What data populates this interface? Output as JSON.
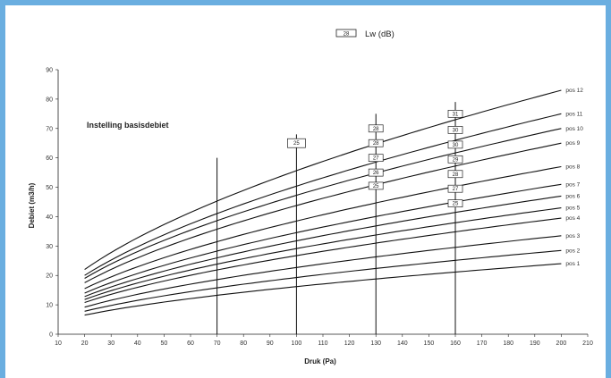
{
  "chart_data": {
    "type": "line",
    "title": "",
    "xlabel": "Druk (Pa)",
    "ylabel": "Debiet (m3/h)",
    "xlim": [
      10,
      210
    ],
    "ylim": [
      0,
      90
    ],
    "x_ticks": [
      10,
      20,
      30,
      40,
      50,
      60,
      70,
      80,
      90,
      100,
      110,
      120,
      130,
      140,
      150,
      160,
      170,
      180,
      190,
      200,
      210
    ],
    "y_ticks": [
      0,
      10,
      20,
      30,
      40,
      50,
      60,
      70,
      80,
      90
    ],
    "x_tick_labels": [
      "10",
      "20",
      "30",
      "40",
      "50",
      "60",
      "70",
      "80",
      "90",
      "100",
      "110",
      "120",
      "130",
      "140",
      "150",
      "160",
      "170",
      "180",
      "190",
      "200",
      "210"
    ],
    "y_tick_labels": [
      "0",
      "10",
      "20",
      "30",
      "40",
      "50",
      "60",
      "70",
      "80",
      "90"
    ],
    "grid": false,
    "legend": {
      "box_text": "28",
      "text": "Lw (dB)",
      "placement": "top-center"
    },
    "annotation": "Instelling basisdebiet",
    "vertical_lines": [
      70,
      100,
      130,
      160
    ],
    "series": [
      {
        "name": "pos 1",
        "endpoints": [
          [
            20,
            6.5
          ],
          [
            200,
            24
          ]
        ]
      },
      {
        "name": "pos 2",
        "endpoints": [
          [
            20,
            7.8
          ],
          [
            200,
            28.5
          ]
        ]
      },
      {
        "name": "pos 3",
        "endpoints": [
          [
            20,
            9.2
          ],
          [
            200,
            33.5
          ]
        ]
      },
      {
        "name": "pos 4",
        "endpoints": [
          [
            20,
            10.8
          ],
          [
            200,
            39.5
          ]
        ]
      },
      {
        "name": "pos 5",
        "endpoints": [
          [
            20,
            11.8
          ],
          [
            200,
            43
          ]
        ]
      },
      {
        "name": "pos 6",
        "endpoints": [
          [
            20,
            12.8
          ],
          [
            200,
            47
          ]
        ]
      },
      {
        "name": "pos 7",
        "endpoints": [
          [
            20,
            14
          ],
          [
            200,
            51
          ]
        ]
      },
      {
        "name": "pos 8",
        "endpoints": [
          [
            20,
            15.5
          ],
          [
            200,
            57
          ]
        ]
      },
      {
        "name": "pos 9",
        "endpoints": [
          [
            20,
            17.5
          ],
          [
            200,
            65
          ]
        ]
      },
      {
        "name": "pos 10",
        "endpoints": [
          [
            20,
            19
          ],
          [
            200,
            70
          ]
        ]
      },
      {
        "name": "pos 11",
        "endpoints": [
          [
            20,
            20
          ],
          [
            200,
            75
          ]
        ]
      },
      {
        "name": "pos 12",
        "endpoints": [
          [
            20,
            22
          ],
          [
            200,
            83
          ]
        ]
      }
    ],
    "sound_labels": [
      {
        "x": 100,
        "y": 65,
        "text": "25"
      },
      {
        "x": 130,
        "y": 70,
        "text": "28"
      },
      {
        "x": 130,
        "y": 65,
        "text": "28"
      },
      {
        "x": 130,
        "y": 60,
        "text": "27"
      },
      {
        "x": 130,
        "y": 55,
        "text": "26"
      },
      {
        "x": 130,
        "y": 50.5,
        "text": "25"
      },
      {
        "x": 160,
        "y": 75,
        "text": "31"
      },
      {
        "x": 160,
        "y": 69.5,
        "text": "30"
      },
      {
        "x": 160,
        "y": 64.5,
        "text": "30"
      },
      {
        "x": 160,
        "y": 59.5,
        "text": "29"
      },
      {
        "x": 160,
        "y": 54.5,
        "text": "28"
      },
      {
        "x": 160,
        "y": 49.5,
        "text": "27"
      },
      {
        "x": 160,
        "y": 44.5,
        "text": "25"
      }
    ]
  }
}
